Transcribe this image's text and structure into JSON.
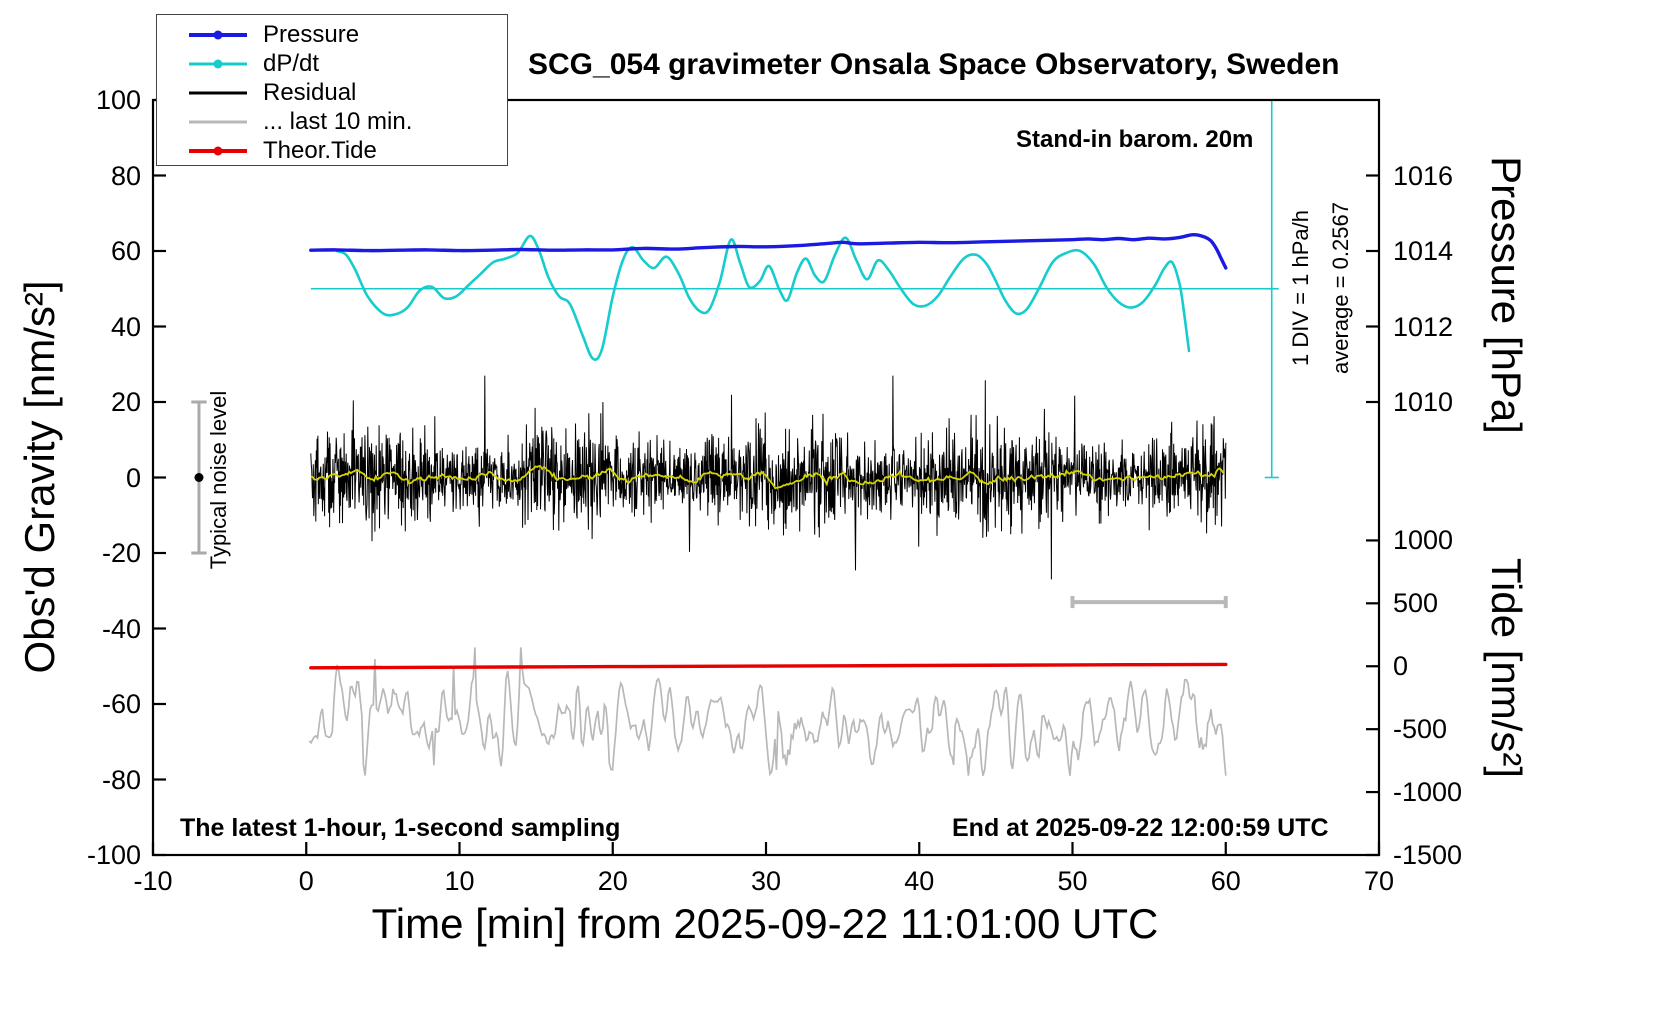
{
  "title": "SCG_054 gravimeter Onsala Space Observatory, Sweden",
  "annotations": {
    "barometer": "Stand-in barom. 20m",
    "div_scale": "1 DIV = 1 hPa/h",
    "average": "average = 0.2567",
    "noise_level": "Typical noise level",
    "sampling": "The latest 1-hour, 1-second sampling",
    "end_time": "End at 2025-09-22 12:00:59 UTC"
  },
  "legend": {
    "items": [
      {
        "id": "pressure",
        "label": "Pressure",
        "color": "#1a1ae0",
        "width": 4,
        "dot": true
      },
      {
        "id": "dpdt",
        "label": "dP/dt",
        "color": "#16cccc",
        "width": 3,
        "dot": true
      },
      {
        "id": "residual",
        "label": "Residual",
        "color": "#000000",
        "width": 3,
        "dot": false
      },
      {
        "id": "last10",
        "label": "... last 10 min.",
        "color": "#b8b8b8",
        "width": 3,
        "dot": false
      },
      {
        "id": "theortide",
        "label": "Theor.Tide",
        "color": "#e60000",
        "width": 4,
        "dot": true
      }
    ]
  },
  "axes": {
    "x": {
      "label": "Time [min] from 2025-09-22 11:01:00 UTC",
      "range": [
        -10,
        70
      ],
      "ticks": [
        -10,
        0,
        10,
        20,
        30,
        40,
        50,
        60,
        70
      ]
    },
    "y_left": {
      "label": "Obs'd Gravity [nm/s²]",
      "range": [
        -100,
        100
      ],
      "ticks": [
        100,
        80,
        60,
        40,
        20,
        0,
        -20,
        -40,
        -60,
        -80,
        -100
      ]
    },
    "y_pressure": {
      "label": "Pressure [hPa]",
      "ticks": [
        {
          "value": "1016",
          "y": 80
        },
        {
          "value": "1014",
          "y": 60
        },
        {
          "value": "1012",
          "y": 40
        },
        {
          "value": "1010",
          "y": 20
        }
      ]
    },
    "y_tide": {
      "label": "Tide [nm/s²]",
      "ticks": [
        {
          "value": "1000",
          "y": -16.67
        },
        {
          "value": "500",
          "y": -33.33
        },
        {
          "value": "0",
          "y": -50
        },
        {
          "value": "-500",
          "y": -66.67
        },
        {
          "value": "-1000",
          "y": -83.33
        },
        {
          "value": "-1500",
          "y": -100
        }
      ]
    }
  },
  "chart_data": {
    "type": "line",
    "title": "SCG_054 gravimeter Onsala Space Observatory, Sweden",
    "xlabel": "Time [min] from 2025-09-22 11:01:00 UTC",
    "ylabel": "Obs'd Gravity [nm/s²]",
    "x_range": [
      -10,
      70
    ],
    "y_range": [
      -100,
      100
    ],
    "grid": false,
    "legend_position": "top-left",
    "axis_mapping": {
      "pressure_hPa": {
        "y60_equals": 1014,
        "hPa_per_gravity_unit": 0.1
      },
      "tide_nms2": {
        "y_minus50_equals": 0,
        "tide_per_gravity_unit": 30
      }
    },
    "series": [
      {
        "name": "Pressure",
        "color": "#1a1ae0",
        "width": 3.4,
        "smooth": true,
        "points": [
          [
            0.3,
            60.2
          ],
          [
            2,
            60.3
          ],
          [
            4,
            60.1
          ],
          [
            6,
            60.2
          ],
          [
            8,
            60.3
          ],
          [
            10,
            60.1
          ],
          [
            12,
            60.2
          ],
          [
            14,
            60.4
          ],
          [
            16,
            60.2
          ],
          [
            18,
            60.3
          ],
          [
            20,
            60.3
          ],
          [
            22,
            60.7
          ],
          [
            24,
            60.5
          ],
          [
            26,
            60.9
          ],
          [
            28,
            61.2
          ],
          [
            30,
            61.1
          ],
          [
            32,
            61.4
          ],
          [
            34,
            62.0
          ],
          [
            35,
            62.3
          ],
          [
            36,
            61.9
          ],
          [
            38,
            62.1
          ],
          [
            40,
            62.3
          ],
          [
            42,
            62.2
          ],
          [
            44,
            62.4
          ],
          [
            46,
            62.6
          ],
          [
            48,
            62.8
          ],
          [
            50,
            63.0
          ],
          [
            51,
            63.2
          ],
          [
            52,
            63.0
          ],
          [
            53,
            63.3
          ],
          [
            54,
            63.0
          ],
          [
            55,
            63.4
          ],
          [
            56,
            63.2
          ],
          [
            57,
            63.6
          ],
          [
            57.8,
            64.3
          ],
          [
            58.4,
            64.0
          ],
          [
            59.0,
            62.8
          ],
          [
            59.4,
            60.5
          ],
          [
            59.7,
            58.0
          ],
          [
            60.0,
            55.5
          ]
        ]
      },
      {
        "name": "dP/dt",
        "color": "#16cccc",
        "width": 2.6,
        "smooth": true,
        "points": [
          [
            2,
            60
          ],
          [
            2.6,
            59
          ],
          [
            3.2,
            55
          ],
          [
            4,
            48
          ],
          [
            5,
            43.5
          ],
          [
            5.8,
            43.2
          ],
          [
            6.6,
            45
          ],
          [
            7.4,
            49.5
          ],
          [
            8.2,
            50.5
          ],
          [
            9,
            47.5
          ],
          [
            9.8,
            48
          ],
          [
            10.6,
            51
          ],
          [
            11.4,
            54
          ],
          [
            12.2,
            57
          ],
          [
            13,
            58
          ],
          [
            13.8,
            59.5
          ],
          [
            14.6,
            64
          ],
          [
            15.2,
            60
          ],
          [
            15.8,
            53
          ],
          [
            16.5,
            48
          ],
          [
            17.2,
            46
          ],
          [
            18,
            38
          ],
          [
            18.7,
            31.5
          ],
          [
            19.3,
            34
          ],
          [
            20,
            48
          ],
          [
            20.7,
            58
          ],
          [
            21.3,
            61
          ],
          [
            22,
            57.5
          ],
          [
            22.7,
            55.5
          ],
          [
            23.5,
            58.5
          ],
          [
            24.3,
            54
          ],
          [
            25,
            47.5
          ],
          [
            25.7,
            44
          ],
          [
            26.3,
            44.5
          ],
          [
            27,
            52
          ],
          [
            27.7,
            63
          ],
          [
            28.3,
            57
          ],
          [
            28.9,
            50.5
          ],
          [
            29.6,
            52
          ],
          [
            30.2,
            56
          ],
          [
            30.9,
            49.5
          ],
          [
            31.4,
            47
          ],
          [
            32,
            54
          ],
          [
            32.6,
            58
          ],
          [
            33.2,
            53.5
          ],
          [
            33.8,
            52
          ],
          [
            34.5,
            59
          ],
          [
            35.2,
            63.5
          ],
          [
            35.9,
            57.5
          ],
          [
            36.6,
            52.5
          ],
          [
            37.3,
            57.5
          ],
          [
            38,
            55
          ],
          [
            38.8,
            50
          ],
          [
            39.6,
            46
          ],
          [
            40.4,
            45.5
          ],
          [
            41.2,
            48
          ],
          [
            42,
            53
          ],
          [
            42.9,
            58
          ],
          [
            43.7,
            59
          ],
          [
            44.4,
            56.5
          ],
          [
            45,
            52
          ],
          [
            45.6,
            47
          ],
          [
            46.3,
            43.5
          ],
          [
            47,
            44.5
          ],
          [
            47.8,
            50
          ],
          [
            48.7,
            57
          ],
          [
            49.6,
            59.5
          ],
          [
            50.5,
            60
          ],
          [
            51.4,
            56.5
          ],
          [
            52.2,
            50.5
          ],
          [
            53,
            46.5
          ],
          [
            53.8,
            45
          ],
          [
            54.6,
            46.5
          ],
          [
            55.4,
            51
          ],
          [
            56,
            55.5
          ],
          [
            56.5,
            57
          ],
          [
            57,
            51
          ],
          [
            57.3,
            43
          ],
          [
            57.6,
            33.5
          ]
        ]
      },
      {
        "name": "Theor.Tide",
        "color": "#e60000",
        "width": 3.4,
        "smooth": true,
        "points": [
          [
            0.3,
            -50.4
          ],
          [
            10,
            -50.25
          ],
          [
            20,
            -50.1
          ],
          [
            30,
            -49.95
          ],
          [
            40,
            -49.8
          ],
          [
            50,
            -49.65
          ],
          [
            60,
            -49.5
          ]
        ]
      }
    ],
    "generated_series": [
      {
        "name": "Residual",
        "color": "#000000",
        "width": 1,
        "seed": 42,
        "x_start": 0.3,
        "x_end": 60,
        "n": 2200,
        "mean": 0,
        "std": 5.6,
        "spike_prob": 0.018,
        "spike_scale": 2.4,
        "clamp": 27
      },
      {
        "name": "... last 10 min.",
        "color": "#b8b8b8",
        "width": 1.7,
        "seed": 7,
        "x_start": 0.2,
        "x_end": 60,
        "n": 560,
        "mean": -65,
        "std": 11,
        "smooth_passes": 2,
        "spike_prob": 0.015,
        "spike_base": 5,
        "spike_rand": 10,
        "clamp_low": -79,
        "clamp_high": -45
      }
    ],
    "smoothed_overlay": {
      "name": "Residual running mean",
      "color": "#d4d400",
      "width": 1.8,
      "window": 41
    },
    "reference_lines": {
      "dpdt_zero_line": {
        "y": 50,
        "x0": 0.3,
        "x1": 63,
        "color": "#16cccc",
        "width": 1.6
      },
      "dpdt_scale_axis": {
        "x": 63,
        "y0": 0,
        "y1": 100,
        "ticks": [
          0,
          50,
          100
        ],
        "color": "#16cccc",
        "width": 1.6,
        "div_label": "1 DIV = 1 hPa/h",
        "average": 0.2567
      }
    },
    "noise_bar": {
      "x": -7,
      "y0": -20,
      "y1": 20,
      "cap_halfwidth": 0.5,
      "dot_y": 0,
      "color": "#aaaaaa",
      "label": "Typical noise level"
    },
    "scale_bar": {
      "y": -33,
      "x0": 50,
      "x1": 60,
      "cap_halfheight": 1.6,
      "color": "#b8b8b8"
    }
  }
}
